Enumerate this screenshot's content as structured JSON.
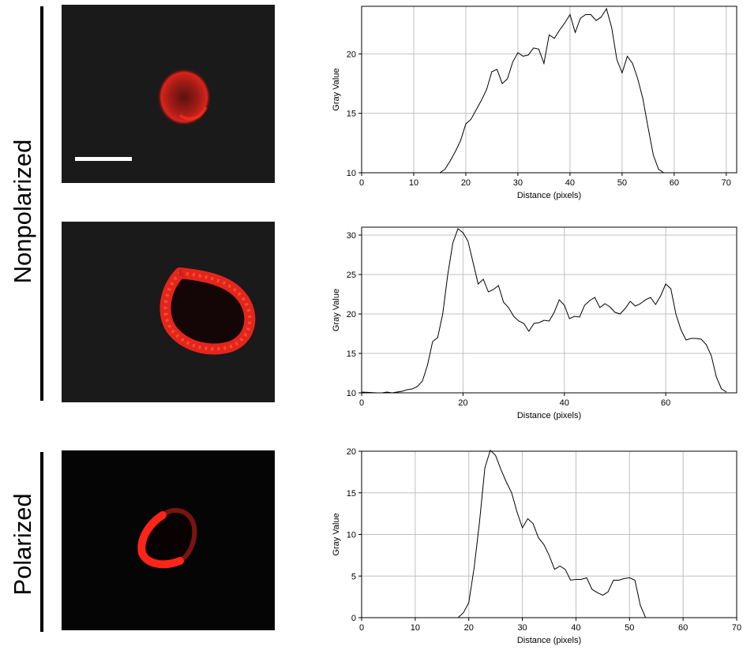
{
  "groups": {
    "nonpolarized": "Nonpolarized",
    "polarized": "Polarized"
  },
  "colors": {
    "cell": "#ff2a1a",
    "background": "#1a1a1a",
    "line": "#000000",
    "grid": "#c0c0c0"
  },
  "chart_data": [
    {
      "type": "line",
      "xlabel": "Distance (pixels)",
      "ylabel": "Gray Value",
      "xlim": [
        0,
        72
      ],
      "ylim": [
        10,
        24
      ],
      "xticks": [
        0,
        10,
        20,
        30,
        40,
        50,
        60,
        70
      ],
      "yticks": [
        10,
        15,
        20
      ],
      "grid": true,
      "series": [
        {
          "x": [
            0,
            15,
            16,
            17,
            18,
            19,
            20,
            21,
            22,
            23,
            24,
            25,
            26,
            27,
            28,
            29,
            30,
            31,
            32,
            33,
            34,
            35,
            36,
            37,
            38,
            39,
            40,
            41,
            42,
            43,
            44,
            45,
            46,
            47,
            48,
            49,
            50,
            51,
            52,
            53,
            54,
            55,
            56,
            57,
            58,
            72
          ],
          "y": [
            10,
            10,
            10.3,
            11,
            11.8,
            12.7,
            14.1,
            14.5,
            15.3,
            16.1,
            17,
            18.5,
            18.7,
            17.5,
            17.9,
            19.3,
            20.1,
            19.8,
            19.9,
            20.5,
            20.4,
            19.2,
            21.6,
            21.3,
            22,
            22.6,
            23.3,
            21.8,
            23,
            23.3,
            23.3,
            22.8,
            23.1,
            23.8,
            22.2,
            19.5,
            18.4,
            19.8,
            19.2,
            17.9,
            16.2,
            13.8,
            11.5,
            10.3,
            10,
            10
          ]
        }
      ]
    },
    {
      "type": "line",
      "xlabel": "Distance (pixels)",
      "ylabel": "Gray Value",
      "xlim": [
        0,
        74
      ],
      "ylim": [
        10,
        31
      ],
      "xticks": [
        0,
        20,
        40,
        60
      ],
      "yticks": [
        10,
        15,
        20,
        25,
        30
      ],
      "grid": true,
      "series": [
        {
          "x": [
            0,
            3,
            4,
            5,
            6,
            7,
            8,
            9,
            10,
            11,
            12,
            13,
            14,
            15,
            16,
            17,
            18,
            19,
            20,
            21,
            22,
            23,
            24,
            25,
            26,
            27,
            28,
            29,
            30,
            31,
            32,
            33,
            34,
            35,
            36,
            37,
            38,
            39,
            40,
            41,
            42,
            43,
            44,
            45,
            46,
            47,
            48,
            49,
            50,
            51,
            52,
            53,
            54,
            55,
            56,
            57,
            58,
            59,
            60,
            61,
            62,
            63,
            64,
            65,
            66,
            67,
            68,
            69,
            70,
            71,
            72
          ],
          "y": [
            10.1,
            10,
            10,
            10.1,
            10,
            10.1,
            10.2,
            10.4,
            10.5,
            10.8,
            11.5,
            13.5,
            16.5,
            17,
            20,
            25,
            29,
            30.8,
            30.3,
            29.2,
            26.5,
            23.8,
            24.4,
            22.8,
            23.1,
            23.6,
            21.5,
            20.8,
            19.7,
            19.1,
            18.8,
            17.8,
            18.8,
            18.9,
            19.2,
            19.1,
            20.2,
            21.8,
            21.1,
            19.4,
            19.7,
            19.6,
            21.1,
            21.7,
            22.1,
            20.8,
            21.3,
            20.9,
            20.2,
            20,
            20.7,
            21.6,
            21,
            21.3,
            21.8,
            22.1,
            21.2,
            22.3,
            23.8,
            23.2,
            20,
            18,
            16.7,
            16.9,
            16.9,
            16.8,
            16.1,
            14.7,
            12,
            10.5,
            10.1
          ]
        }
      ]
    },
    {
      "type": "line",
      "xlabel": "Distance (pixels)",
      "ylabel": "Gray Value",
      "xlim": [
        0,
        70
      ],
      "ylim": [
        0,
        20
      ],
      "xticks": [
        0,
        10,
        20,
        30,
        40,
        50,
        60,
        70
      ],
      "yticks": [
        0,
        5,
        10,
        15,
        20
      ],
      "grid": true,
      "series": [
        {
          "x": [
            0,
            18,
            19,
            20,
            21,
            22,
            23,
            24,
            25,
            26,
            27,
            28,
            29,
            30,
            31,
            32,
            33,
            34,
            35,
            36,
            37,
            38,
            39,
            40,
            41,
            42,
            43,
            44,
            45,
            46,
            47,
            48,
            49,
            50,
            51,
            52,
            53,
            70
          ],
          "y": [
            0,
            0,
            0.6,
            1.8,
            6,
            11.5,
            18,
            20.1,
            19.5,
            17.8,
            16.3,
            15,
            12.7,
            10.8,
            11.9,
            11.3,
            9.6,
            8.8,
            7.5,
            5.8,
            6.2,
            5.8,
            4.5,
            4.6,
            4.6,
            4.8,
            3.4,
            3,
            2.7,
            3.1,
            4.5,
            4.5,
            4.7,
            4.8,
            4.5,
            1.5,
            0,
            0
          ]
        }
      ]
    }
  ]
}
